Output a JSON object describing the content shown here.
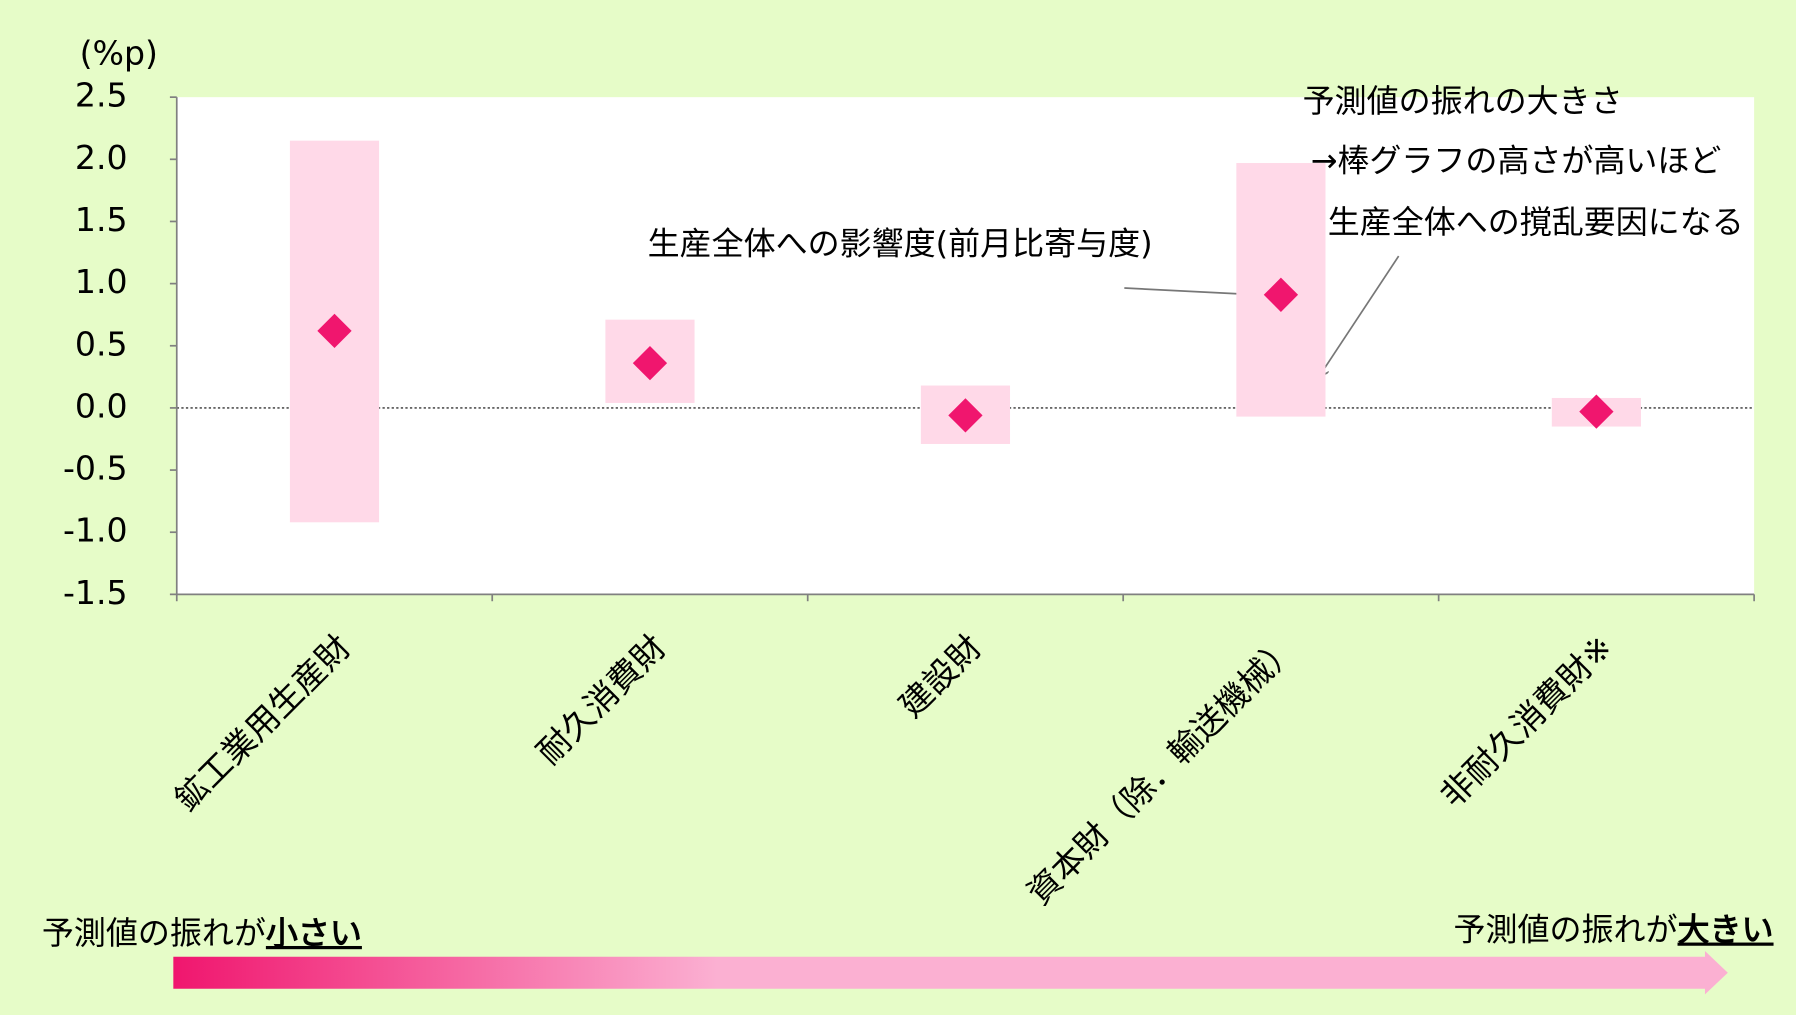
{
  "chart_data": {
    "type": "range-bar",
    "y_unit": "(%p)",
    "categories": [
      "鉱工業用生産財",
      "耐久消費財",
      "建設財",
      "資本財（除．輸送機械）",
      "非耐久消費財※"
    ],
    "ranges": {
      "low": [
        -0.92,
        0.04,
        -0.29,
        -0.07,
        -0.15
      ],
      "high": [
        2.15,
        0.71,
        0.18,
        1.97,
        0.08
      ],
      "color": "#ffd9e8"
    },
    "values": [
      0.62,
      0.36,
      -0.06,
      0.91,
      -0.03
    ],
    "marker_color": "#f0166e",
    "ylim": [
      -1.5,
      2.5
    ],
    "yticks": [
      2.5,
      {
        "value": 2.0,
        "label": "2.0"
      },
      1.5,
      {
        "value": 1.0,
        "label": "1.0"
      },
      0.5,
      {
        "value": 0.0,
        "label": "0.0"
      },
      -0.5,
      {
        "value": -1.0,
        "label": "-1.0"
      },
      -1.5
    ],
    "annotations": {
      "marker_note": "生産全体への影響度(前月比寄与度)",
      "bar_note": [
        "予測値の振れの大きさ",
        "→棒グラフの高さが高いほど",
        "生産全体への撹乱要因になる"
      ]
    },
    "scale_legend": {
      "left_prefix": "予測値の振れが",
      "left_emph": "小さい",
      "right_prefix": "予測値の振れが",
      "right_emph": "大きい"
    }
  }
}
